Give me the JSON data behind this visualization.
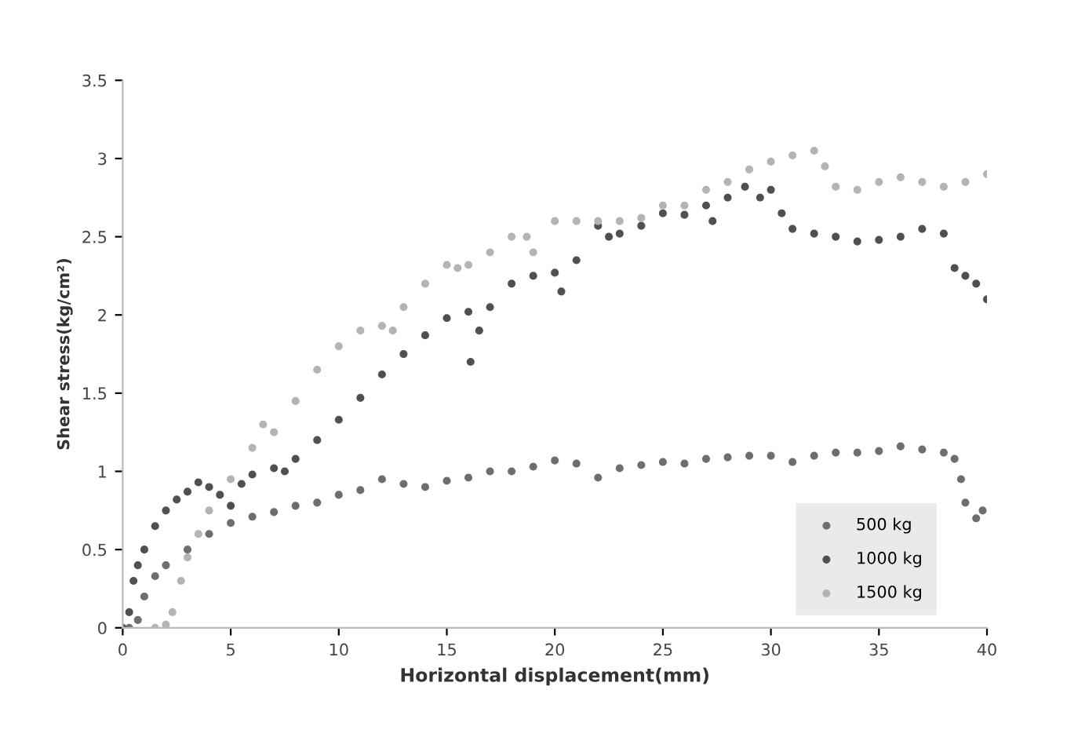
{
  "chart_data": {
    "type": "scatter",
    "xlabel": "Horizontal displacement(mm)",
    "ylabel": "Shear stress(kg/cm²)",
    "xlim": [
      0,
      40
    ],
    "xticks": [
      0,
      5,
      10,
      15,
      20,
      25,
      30,
      35,
      40
    ],
    "ylim": [
      0,
      3.5
    ],
    "yticks": [
      0,
      0.5,
      1,
      1.5,
      2,
      2.5,
      3,
      3.5
    ],
    "grid": false,
    "legend": "bottom right",
    "marker": "circle",
    "series": [
      {
        "name": "500 kg",
        "color": "#6e6e6e",
        "x": [
          0.3,
          0.7,
          1,
          1.5,
          2,
          3,
          4,
          5,
          6,
          7,
          8,
          9,
          10,
          11,
          12,
          13,
          14,
          15,
          16,
          17,
          18,
          19,
          20,
          21,
          22,
          23,
          24,
          25,
          26,
          27,
          28,
          29,
          30,
          31,
          32,
          33,
          34,
          35,
          36,
          37,
          38,
          38.5,
          38.8,
          39,
          39.5,
          39.8
        ],
        "values": [
          0,
          0.05,
          0.2,
          0.33,
          0.4,
          0.5,
          0.6,
          0.67,
          0.71,
          0.74,
          0.78,
          0.8,
          0.85,
          0.88,
          0.95,
          0.92,
          0.9,
          0.94,
          0.96,
          1.0,
          1.0,
          1.03,
          1.07,
          1.05,
          0.96,
          1.02,
          1.04,
          1.06,
          1.05,
          1.08,
          1.09,
          1.1,
          1.1,
          1.06,
          1.1,
          1.12,
          1.12,
          1.13,
          1.16,
          1.14,
          1.12,
          1.08,
          0.95,
          0.8,
          0.7,
          0.75
        ]
      },
      {
        "name": "1000 kg",
        "color": "#505050",
        "x": [
          0,
          0.3,
          0.5,
          0.7,
          1,
          1.5,
          2,
          2.5,
          3,
          3.5,
          4,
          4.5,
          5,
          5.5,
          6,
          7,
          7.5,
          8,
          9,
          10,
          11,
          12,
          13,
          14,
          15,
          16,
          16.1,
          16.5,
          17,
          18,
          19,
          20,
          20.3,
          21,
          22,
          22.5,
          23,
          24,
          25,
          26,
          27,
          27.3,
          28,
          28.8,
          29.5,
          30,
          30.5,
          31,
          32,
          33,
          34,
          35,
          36,
          37,
          38,
          38.5,
          39,
          39.5,
          40
        ],
        "values": [
          0,
          0.1,
          0.3,
          0.4,
          0.5,
          0.65,
          0.75,
          0.82,
          0.87,
          0.93,
          0.9,
          0.85,
          0.78,
          0.92,
          0.98,
          1.02,
          1.0,
          1.08,
          1.2,
          1.33,
          1.47,
          1.62,
          1.75,
          1.87,
          1.98,
          2.02,
          1.7,
          1.9,
          2.05,
          2.2,
          2.25,
          2.27,
          2.15,
          2.35,
          2.57,
          2.5,
          2.52,
          2.57,
          2.65,
          2.64,
          2.7,
          2.6,
          2.75,
          2.82,
          2.75,
          2.8,
          2.65,
          2.55,
          2.52,
          2.5,
          2.47,
          2.48,
          2.5,
          2.55,
          2.52,
          2.3,
          2.25,
          2.2,
          2.1
        ]
      },
      {
        "name": "1500 kg",
        "color": "#b4b4b4",
        "x": [
          1.5,
          2,
          2.3,
          2.7,
          3,
          3.5,
          4,
          5,
          6,
          6.5,
          7,
          8,
          9,
          10,
          11,
          12,
          12.5,
          13,
          14,
          15,
          15.5,
          16,
          17,
          18,
          18.7,
          19,
          20,
          21,
          22,
          23,
          24,
          25,
          26,
          27,
          28,
          29,
          30,
          31,
          32,
          32.5,
          33,
          34,
          35,
          36,
          37,
          38,
          39,
          40
        ],
        "values": [
          0,
          0.02,
          0.1,
          0.3,
          0.45,
          0.6,
          0.75,
          0.95,
          1.15,
          1.3,
          1.25,
          1.45,
          1.65,
          1.8,
          1.9,
          1.93,
          1.9,
          2.05,
          2.2,
          2.32,
          2.3,
          2.32,
          2.4,
          2.5,
          2.5,
          2.4,
          2.6,
          2.6,
          2.6,
          2.6,
          2.62,
          2.7,
          2.7,
          2.8,
          2.85,
          2.93,
          2.98,
          3.02,
          3.05,
          2.95,
          2.82,
          2.8,
          2.85,
          2.88,
          2.85,
          2.82,
          2.85,
          2.9
        ]
      }
    ]
  }
}
